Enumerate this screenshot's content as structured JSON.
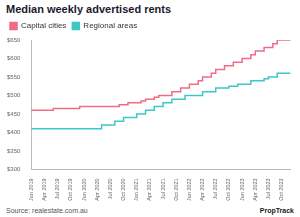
{
  "chart_data": {
    "type": "line",
    "title": "Median weekly advertised rents",
    "source": "Source: realestate.com.au",
    "logo": "PropTrack",
    "categories": [
      "Jan 2019",
      null,
      null,
      "Apr 2019",
      null,
      null,
      "Jul 2019",
      null,
      null,
      "Oct 2019",
      null,
      null,
      "Jan 2020",
      null,
      null,
      "Apr 2020",
      null,
      null,
      "Jul 2020",
      null,
      null,
      "Oct 2020",
      null,
      null,
      "Jan 2021",
      null,
      null,
      "Apr 2021",
      null,
      null,
      "Jul 2021",
      null,
      null,
      "Oct 2021",
      null,
      null,
      "Jan 2022",
      null,
      null,
      "Apr 2022",
      null,
      null,
      "Jul 2022",
      null,
      null,
      "Oct 2022",
      null,
      null,
      "Jan 2023",
      null,
      null,
      "Apr 2023",
      null,
      null,
      "Jul 2023",
      null,
      null,
      "Oct 2023",
      null,
      null
    ],
    "series": [
      {
        "name": "Capital cities",
        "color": "#ef6b86",
        "values": [
          460,
          460,
          460,
          460,
          460,
          465,
          465,
          465,
          465,
          465,
          465,
          470,
          470,
          470,
          470,
          470,
          470,
          470,
          470,
          470,
          475,
          475,
          480,
          480,
          480,
          485,
          490,
          490,
          495,
          500,
          500,
          500,
          510,
          510,
          520,
          520,
          530,
          530,
          540,
          550,
          550,
          560,
          570,
          570,
          580,
          580,
          590,
          590,
          600,
          600,
          610,
          620,
          620,
          630,
          630,
          640,
          650,
          650,
          650,
          650
        ]
      },
      {
        "name": "Regional areas",
        "color": "#3cc8c8",
        "values": [
          410,
          410,
          410,
          410,
          410,
          410,
          410,
          410,
          410,
          410,
          410,
          410,
          410,
          410,
          410,
          410,
          420,
          420,
          420,
          430,
          430,
          440,
          440,
          440,
          450,
          450,
          460,
          460,
          470,
          470,
          480,
          480,
          490,
          490,
          490,
          500,
          500,
          500,
          500,
          510,
          510,
          510,
          520,
          520,
          520,
          525,
          525,
          530,
          530,
          530,
          540,
          540,
          540,
          545,
          550,
          550,
          560,
          560,
          560,
          560
        ]
      }
    ],
    "ylim": [
      300,
      650
    ],
    "yticks": [
      {
        "value": 300,
        "label": "$300"
      },
      {
        "value": 350,
        "label": "$350"
      },
      {
        "value": 400,
        "label": "$400"
      },
      {
        "value": 450,
        "label": "$450"
      },
      {
        "value": 500,
        "label": "$500"
      },
      {
        "value": 550,
        "label": "$550"
      },
      {
        "value": 600,
        "label": "$600"
      },
      {
        "value": 650,
        "label": "$650"
      }
    ],
    "grid": false,
    "legend": "top-left"
  }
}
